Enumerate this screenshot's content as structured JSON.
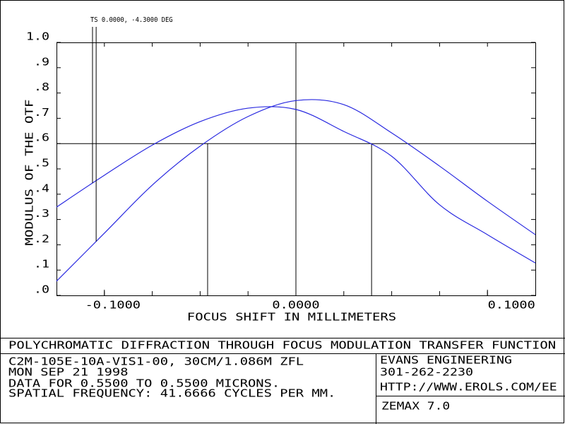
{
  "chart_data": {
    "type": "line",
    "title": "POLYCHROMATIC DIFFRACTION THROUGH FOCUS MODULATION TRANSFER FUNCTION",
    "x_label": "FOCUS SHIFT IN MILLIMETERS",
    "y_label": "MODULUS OF THE OTF",
    "x": [
      -0.125,
      -0.1,
      -0.075,
      -0.05,
      -0.025,
      0,
      0.025,
      0.05,
      0.075,
      0.1,
      0.125
    ],
    "series": [
      {
        "color": "#2828e0",
        "values": [
          0.056,
          0.246,
          0.436,
          0.59,
          0.707,
          0.77,
          0.754,
          0.642,
          0.511,
          0.372,
          0.24
        ]
      },
      {
        "color": "#2828e0",
        "values": [
          0.349,
          0.475,
          0.594,
          0.687,
          0.74,
          0.735,
          0.648,
          0.55,
          0.358,
          0.24,
          0.128
        ]
      }
    ],
    "legend_label": "TS 0.0000, -4.3000 DEG",
    "label_x": [
      -0.1043,
      -0.1062
    ],
    "threshold": 0.6,
    "crossings": [
      -0.0461,
      0.0395
    ],
    "xlim": [
      -0.125,
      0.125
    ],
    "xticks": [
      {
        "value": -0.1,
        "label": "-0.1000"
      },
      {
        "value": 0,
        "label": "0.0000"
      },
      {
        "value": 0.1,
        "label": "0.1000"
      }
    ],
    "ylim": [
      0,
      1
    ],
    "yticks": [
      {
        "value": 0,
        "label": ".0"
      },
      {
        "value": 0.1,
        "label": ".1"
      },
      {
        "value": 0.2,
        "label": ".2"
      },
      {
        "value": 0.3,
        "label": ".3"
      },
      {
        "value": 0.4,
        "label": ".4"
      },
      {
        "value": 0.5,
        "label": ".5"
      },
      {
        "value": 0.6,
        "label": ".6"
      },
      {
        "value": 0.7,
        "label": ".7"
      },
      {
        "value": 0.8,
        "label": ".8"
      },
      {
        "value": 0.9,
        "label": ".9"
      },
      {
        "value": 1,
        "label": "1.0"
      }
    ]
  },
  "footer": {
    "left": [
      "C2M-105E-10A-VIS1-00, 30CM/1.086M ZFL",
      "MON SEP 21 1998",
      "DATA FOR 0.5500 TO 0.5500 MICRONS.",
      "SPATIAL FREQUENCY: 41.6666 CYCLES PER MM."
    ],
    "right": [
      "EVANS ENGINEERING",
      "301-262-2230",
      "HTTP://WWW.EROLS.COM/EE"
    ],
    "version": "ZEMAX 7.0"
  }
}
